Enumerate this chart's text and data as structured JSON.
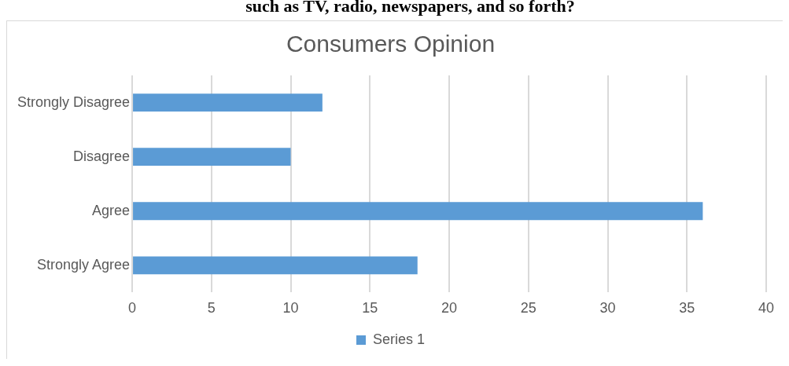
{
  "chart_data": {
    "type": "bar",
    "orientation": "horizontal",
    "title": "Consumers Opinion",
    "annotations": [
      "such as TV, radio, newspapers, and so forth?"
    ],
    "categories": [
      "Strongly Disagree",
      "Disagree",
      "Agree",
      "Strongly Agree"
    ],
    "series": [
      {
        "name": "Series 1",
        "color": "#5b9bd5",
        "values": [
          12,
          10,
          36,
          18
        ]
      }
    ],
    "xlim": [
      0,
      40
    ],
    "xticks": [
      0,
      5,
      10,
      15,
      20,
      25,
      30,
      35,
      40
    ],
    "grid": "x",
    "legend": "bottom"
  }
}
